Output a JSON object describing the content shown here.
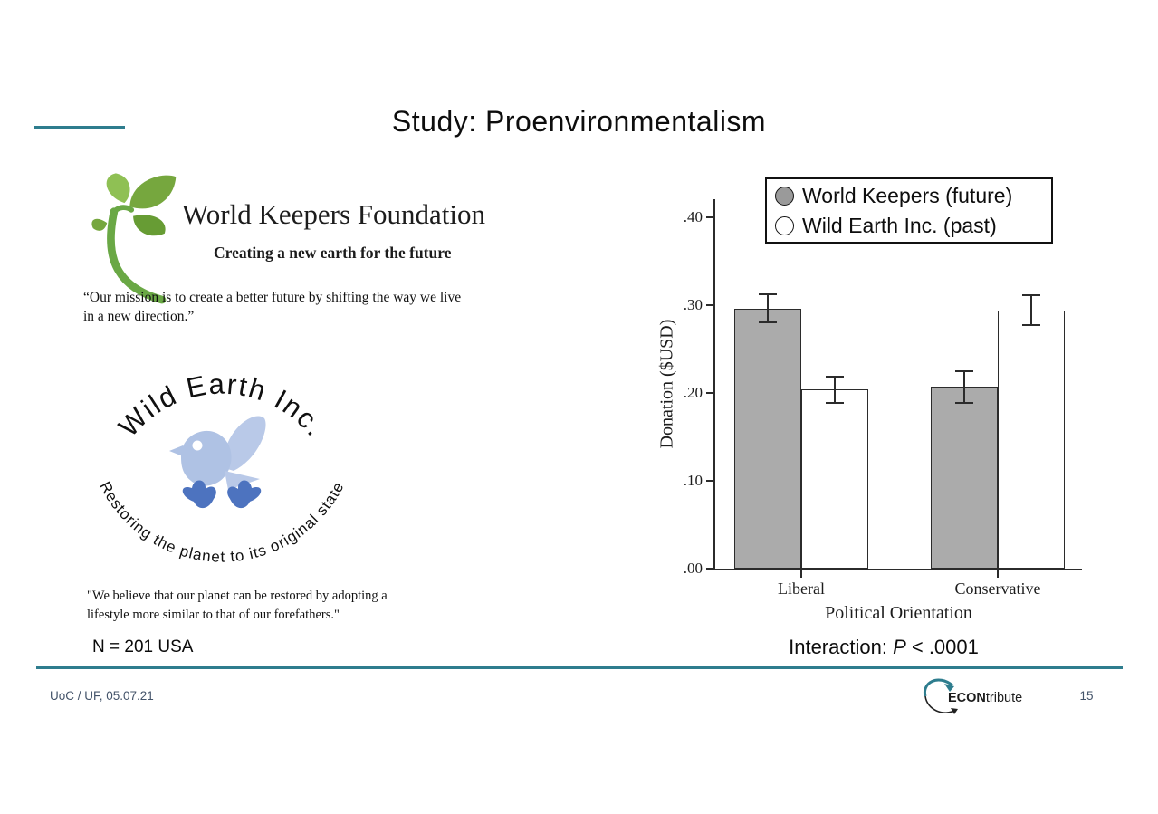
{
  "slide": {
    "title": "Study: Proenvironmentalism",
    "sample_size": "N = 201 USA",
    "interaction": {
      "prefix": "Interaction: ",
      "p": "P",
      "suffix": " < .0001"
    },
    "footer": {
      "left": "UoC / UF, 05.07.21",
      "page": "15"
    },
    "brand": {
      "bold": "ECON",
      "rest": "tribute"
    }
  },
  "world_keepers": {
    "name": "World Keepers Foundation",
    "tagline": "Creating a new earth for the future",
    "quote": "“Our mission is to create a better future by shifting the way we live in a new direction.”"
  },
  "wild_earth": {
    "name": "Wild Earth Inc.",
    "tagline": "Restoring the planet to its original state",
    "quote": "\"We believe that our planet can be restored by adopting a lifestyle more similar to that of our forefathers.\""
  },
  "chart_data": {
    "type": "bar",
    "title": "",
    "categories": [
      "Liberal",
      "Conservative"
    ],
    "series": [
      {
        "name": "World Keepers (future)",
        "marker": "filled-gray-circle",
        "fill": "#ABABAB",
        "values": [
          0.296,
          0.207
        ],
        "errors": [
          0.016,
          0.018
        ]
      },
      {
        "name": "Wild Earth Inc. (past)",
        "marker": "open-circle",
        "fill": "#FFFFFF",
        "values": [
          0.204,
          0.294
        ],
        "errors": [
          0.015,
          0.017
        ]
      }
    ],
    "xlabel": "Political Orientation",
    "ylabel": "Donation ($USD)",
    "yticks": [
      ".00",
      ".10",
      ".20",
      ".30",
      ".40"
    ],
    "ylim": [
      0,
      0.42
    ],
    "grid": false,
    "legend_position": "top-right",
    "annotation": "Interaction: P < .0001"
  },
  "colors": {
    "accent_teal": "#2E7D8E",
    "footer_text": "#44546A",
    "bar_gray": "#ABABAB",
    "legend_dot_gray": "#9A9A9A",
    "logo_green_light": "#8FC054",
    "logo_green": "#76A73E",
    "logo_green_dark": "#679C34",
    "bird_light_blue": "#AFC2E4",
    "bird_dark_blue": "#4D73BF"
  }
}
